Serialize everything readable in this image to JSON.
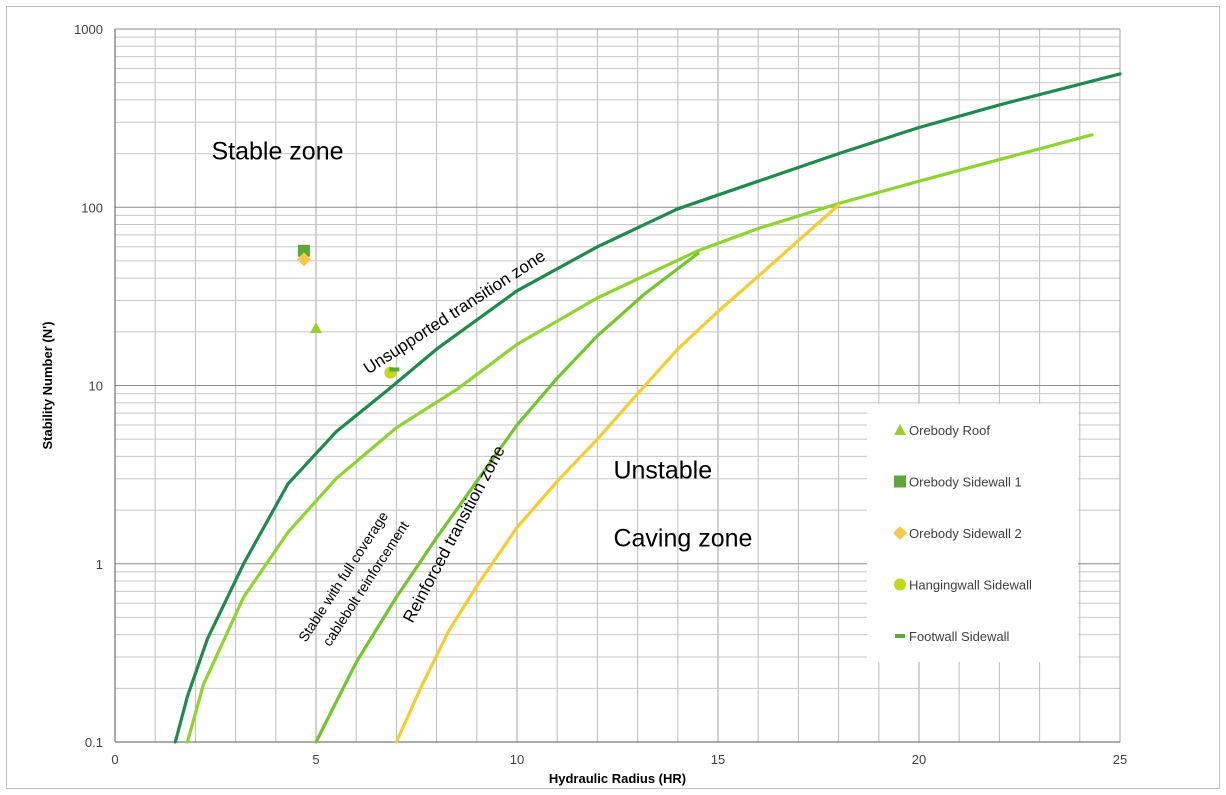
{
  "chart_data": {
    "type": "line",
    "title": "",
    "xlabel": "Hydraulic Radius (HR)",
    "ylabel": "Stability Number (N')",
    "xlim": [
      0,
      25
    ],
    "ylim": [
      0.1,
      1000
    ],
    "yscale": "log",
    "grid": true,
    "xticks": [
      "0",
      "5",
      "10",
      "15",
      "20",
      "25"
    ],
    "yticks": [
      "0.1",
      "1",
      "10",
      "100",
      "1000"
    ],
    "colors": {
      "dark_green": "#1e8a4c",
      "light_green": "#8dd42c",
      "mid_green": "#72c52b",
      "yellow": "#f6cd2e",
      "roof": "#9acd32",
      "sidewall1": "#5da83a",
      "sidewall2": "#f6c94a",
      "hangingwall": "#c2d81c",
      "footwall": "#5da83a"
    },
    "boundaries": [
      {
        "color_key": "dark_green",
        "points": [
          [
            1.5,
            0.1
          ],
          [
            1.8,
            0.18
          ],
          [
            2.3,
            0.38
          ],
          [
            3.2,
            1.0
          ],
          [
            4.3,
            2.8
          ],
          [
            5.5,
            5.5
          ],
          [
            6.8,
            9.5
          ],
          [
            8,
            16
          ],
          [
            10,
            34
          ],
          [
            12,
            60
          ],
          [
            14,
            98
          ],
          [
            16,
            140
          ],
          [
            18,
            200
          ],
          [
            20,
            280
          ],
          [
            22,
            375
          ],
          [
            25,
            560
          ]
        ]
      },
      {
        "color_key": "light_green",
        "points": [
          [
            1.8,
            0.1
          ],
          [
            2.2,
            0.21
          ],
          [
            3.2,
            0.65
          ],
          [
            4.3,
            1.5
          ],
          [
            5.5,
            3.0
          ],
          [
            7,
            5.8
          ],
          [
            8.5,
            9.5
          ],
          [
            10,
            17
          ],
          [
            12,
            31
          ],
          [
            14.5,
            57
          ],
          [
            16,
            76
          ],
          [
            18,
            105
          ],
          [
            20,
            140
          ],
          [
            22,
            185
          ],
          [
            24.3,
            255
          ]
        ]
      },
      {
        "color_key": "mid_green",
        "points": [
          [
            5,
            0.1
          ],
          [
            6,
            0.28
          ],
          [
            7,
            0.65
          ],
          [
            8,
            1.4
          ],
          [
            9,
            2.9
          ],
          [
            10,
            6
          ],
          [
            11,
            11
          ],
          [
            12,
            19
          ],
          [
            13.2,
            33
          ],
          [
            14.5,
            55
          ]
        ]
      },
      {
        "color_key": "yellow",
        "points": [
          [
            7,
            0.1
          ],
          [
            7.6,
            0.2
          ],
          [
            8.3,
            0.42
          ],
          [
            9,
            0.75
          ],
          [
            10,
            1.6
          ],
          [
            11,
            2.9
          ],
          [
            12,
            5
          ],
          [
            13,
            9
          ],
          [
            14,
            16
          ],
          [
            15,
            26
          ],
          [
            16,
            41
          ],
          [
            17,
            65
          ],
          [
            18,
            103
          ]
        ]
      }
    ],
    "series": [
      {
        "name": "Orebody Roof",
        "marker": "triangle",
        "color_key": "roof",
        "x": [
          5.0
        ],
        "y": [
          21
        ]
      },
      {
        "name": "Orebody Sidewall 1",
        "marker": "square",
        "color_key": "sidewall1",
        "x": [
          4.7
        ],
        "y": [
          57
        ]
      },
      {
        "name": "Orebody Sidewall 2",
        "marker": "diamond",
        "color_key": "sidewall2",
        "x": [
          4.7
        ],
        "y": [
          51
        ]
      },
      {
        "name": "Hangingwall Sidewall",
        "marker": "circle",
        "color_key": "hangingwall",
        "x": [
          6.85
        ],
        "y": [
          11.8
        ]
      },
      {
        "name": "Footwall Sidewall",
        "marker": "dash",
        "color_key": "footwall",
        "x": [
          6.95
        ],
        "y": [
          12.3
        ]
      }
    ],
    "annotations": [
      {
        "text": "Stable zone",
        "x": 2.4,
        "y": 185,
        "size": 25,
        "rotate": 0
      },
      {
        "text": "Unsupported transition zone",
        "x": 6.3,
        "y": 11.5,
        "size": 17,
        "rotate": -33
      },
      {
        "text": "Stable with full coverage",
        "x": 4.75,
        "y": 0.36,
        "size": 14,
        "rotate": -57
      },
      {
        "text": "cablebolt reinforcement",
        "x": 5.35,
        "y": 0.34,
        "size": 14,
        "rotate": -57
      },
      {
        "text": "Reinforced transition zone",
        "x": 7.4,
        "y": 0.46,
        "size": 17,
        "rotate": -62
      },
      {
        "text": "Unstable",
        "x": 12.4,
        "y": 3.0,
        "size": 25,
        "rotate": 0
      },
      {
        "text": "Caving zone",
        "x": 12.4,
        "y": 1.25,
        "size": 25,
        "rotate": 0
      }
    ],
    "legend_position": "right"
  }
}
